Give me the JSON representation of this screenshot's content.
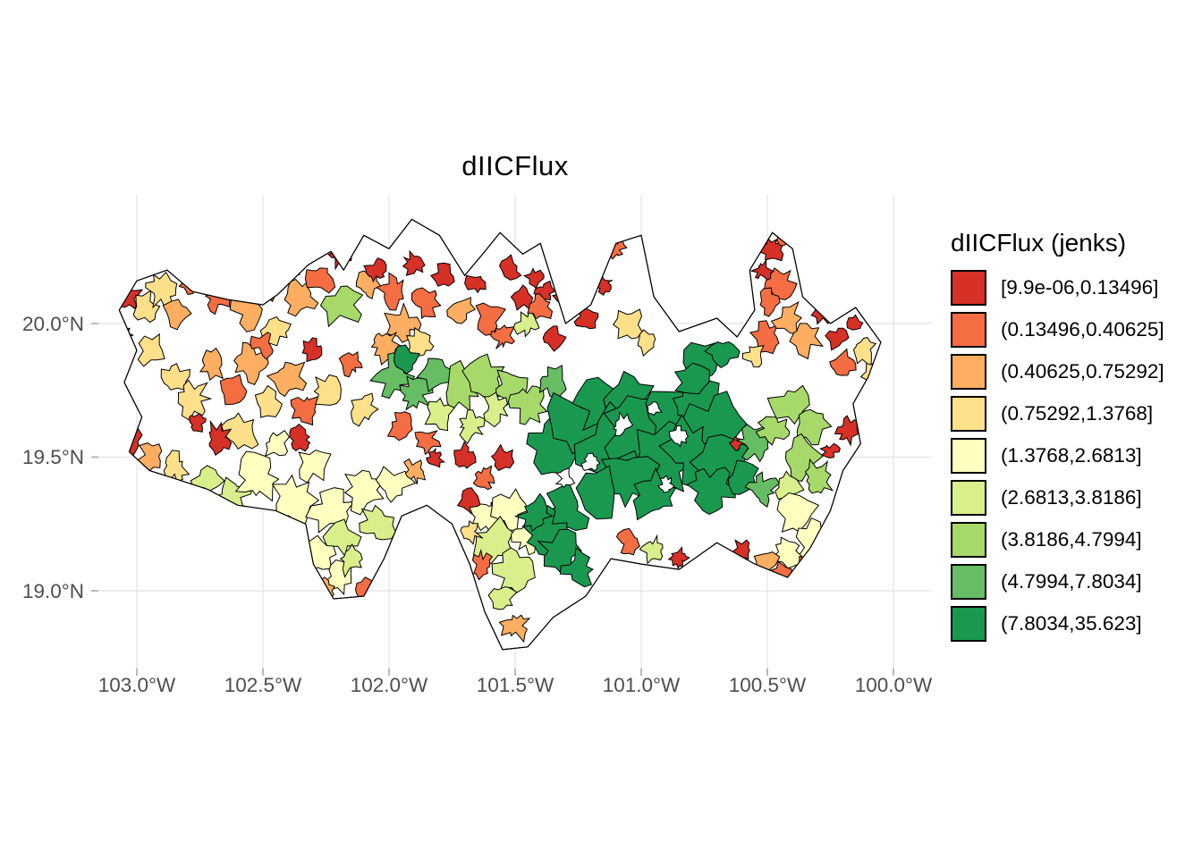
{
  "title": "dIICFlux",
  "legend": {
    "title": "dIICFlux (jenks)",
    "items": [
      {
        "label": "[9.9e-06,0.13496]",
        "color": "#d73027"
      },
      {
        "label": "(0.13496,0.40625]",
        "color": "#f46d43"
      },
      {
        "label": "(0.40625,0.75292]",
        "color": "#fdae61"
      },
      {
        "label": "(0.75292,1.3768]",
        "color": "#fee08b"
      },
      {
        "label": "(1.3768,2.6813]",
        "color": "#ffffbf"
      },
      {
        "label": "(2.6813,3.8186]",
        "color": "#d9ef8b"
      },
      {
        "label": "(3.8186,4.7994]",
        "color": "#a6d96a"
      },
      {
        "label": "(4.7994,7.8034]",
        "color": "#66bd63"
      },
      {
        "label": "(7.8034,35.623]",
        "color": "#1a9850"
      }
    ]
  },
  "axes": {
    "x_ticks": [
      {
        "label": "103.0°W",
        "lon": -103.0
      },
      {
        "label": "102.5°W",
        "lon": -102.5
      },
      {
        "label": "102.0°W",
        "lon": -102.0
      },
      {
        "label": "101.5°W",
        "lon": -101.5
      },
      {
        "label": "101.0°W",
        "lon": -101.0
      },
      {
        "label": "100.5°W",
        "lon": -100.5
      },
      {
        "label": "100.0°W",
        "lon": -100.0
      }
    ],
    "y_ticks": [
      {
        "label": "20.0°N",
        "lat": 20.0
      },
      {
        "label": "19.5°N",
        "lat": 19.5
      },
      {
        "label": "19.0°N",
        "lat": 19.0
      }
    ]
  },
  "chart_data": {
    "type": "choropleth-map",
    "title": "dIICFlux",
    "legend_title": "dIICFlux (jenks)",
    "classification": "jenks",
    "classes": [
      {
        "range": "[9.9e-06,0.13496]",
        "color": "#d73027"
      },
      {
        "range": "(0.13496,0.40625]",
        "color": "#f46d43"
      },
      {
        "range": "(0.40625,0.75292]",
        "color": "#fdae61"
      },
      {
        "range": "(0.75292,1.3768]",
        "color": "#fee08b"
      },
      {
        "range": "(1.3768,2.6813]",
        "color": "#ffffbf"
      },
      {
        "range": "(2.6813,3.8186]",
        "color": "#d9ef8b"
      },
      {
        "range": "(3.8186,4.7994]",
        "color": "#a6d96a"
      },
      {
        "range": "(4.7994,7.8034]",
        "color": "#66bd63"
      },
      {
        "range": "(7.8034,35.623]",
        "color": "#1a9850"
      }
    ],
    "lon_range": [
      -103.2,
      -99.85
    ],
    "lat_range": [
      18.75,
      20.49
    ],
    "grid": true,
    "legend_position": "right"
  },
  "map": {
    "gridline_color": "#e6e6e6",
    "tick_color": "#b9b9b9",
    "outline_color": "#000000",
    "background": "#ffffff",
    "class_colors": [
      "#ffffff",
      "#d73027",
      "#f46d43",
      "#fdae61",
      "#fee08b",
      "#ffffbf",
      "#d9ef8b",
      "#a6d96a",
      "#66bd63",
      "#1a9850"
    ],
    "outline": [
      [
        -103.07,
        20.05
      ],
      [
        -103.0,
        20.16
      ],
      [
        -102.88,
        20.2
      ],
      [
        -102.78,
        20.12
      ],
      [
        -102.64,
        20.09
      ],
      [
        -102.5,
        20.07
      ],
      [
        -102.44,
        20.11
      ],
      [
        -102.32,
        20.22
      ],
      [
        -102.23,
        20.27
      ],
      [
        -102.18,
        20.2
      ],
      [
        -102.1,
        20.33
      ],
      [
        -102.0,
        20.28
      ],
      [
        -101.91,
        20.39
      ],
      [
        -101.8,
        20.33
      ],
      [
        -101.7,
        20.18
      ],
      [
        -101.62,
        20.27
      ],
      [
        -101.56,
        20.34
      ],
      [
        -101.47,
        20.26
      ],
      [
        -101.4,
        20.3
      ],
      [
        -101.3,
        20.0
      ],
      [
        -101.2,
        20.07
      ],
      [
        -101.1,
        20.3
      ],
      [
        -101.0,
        20.33
      ],
      [
        -100.95,
        20.1
      ],
      [
        -100.85,
        19.97
      ],
      [
        -100.7,
        20.02
      ],
      [
        -100.62,
        19.95
      ],
      [
        -100.55,
        20.05
      ],
      [
        -100.57,
        20.2
      ],
      [
        -100.48,
        20.34
      ],
      [
        -100.4,
        20.28
      ],
      [
        -100.36,
        20.1
      ],
      [
        -100.25,
        20.0
      ],
      [
        -100.15,
        20.06
      ],
      [
        -100.05,
        19.93
      ],
      [
        -100.1,
        19.8
      ],
      [
        -100.16,
        19.7
      ],
      [
        -100.13,
        19.55
      ],
      [
        -100.2,
        19.45
      ],
      [
        -100.25,
        19.3
      ],
      [
        -100.33,
        19.16
      ],
      [
        -100.42,
        19.05
      ],
      [
        -100.55,
        19.1
      ],
      [
        -100.7,
        19.18
      ],
      [
        -100.85,
        19.08
      ],
      [
        -101.0,
        19.1
      ],
      [
        -101.12,
        19.12
      ],
      [
        -101.22,
        18.98
      ],
      [
        -101.35,
        18.9
      ],
      [
        -101.45,
        18.79
      ],
      [
        -101.55,
        18.78
      ],
      [
        -101.62,
        18.92
      ],
      [
        -101.68,
        19.1
      ],
      [
        -101.75,
        19.25
      ],
      [
        -101.85,
        19.32
      ],
      [
        -101.95,
        19.28
      ],
      [
        -102.02,
        19.12
      ],
      [
        -102.1,
        18.98
      ],
      [
        -102.22,
        18.97
      ],
      [
        -102.3,
        19.1
      ],
      [
        -102.33,
        19.25
      ],
      [
        -102.45,
        19.3
      ],
      [
        -102.6,
        19.32
      ],
      [
        -102.72,
        19.38
      ],
      [
        -102.85,
        19.42
      ],
      [
        -102.95,
        19.45
      ],
      [
        -103.03,
        19.52
      ],
      [
        -102.98,
        19.65
      ],
      [
        -103.05,
        19.78
      ],
      [
        -103.0,
        19.9
      ]
    ],
    "patches": [
      [
        -103.03,
        20.1,
        0.045,
        1
      ],
      [
        -103.05,
        19.96,
        0.03,
        1
      ],
      [
        -102.97,
        20.06,
        0.05,
        4
      ],
      [
        -102.9,
        20.13,
        0.06,
        4
      ],
      [
        -102.84,
        20.04,
        0.05,
        3
      ],
      [
        -102.79,
        20.16,
        0.04,
        2
      ],
      [
        -102.94,
        19.9,
        0.05,
        4
      ],
      [
        -103.02,
        19.56,
        0.04,
        1
      ],
      [
        -102.94,
        19.5,
        0.05,
        3
      ],
      [
        -102.85,
        19.46,
        0.05,
        4
      ],
      [
        -102.72,
        19.41,
        0.05,
        6
      ],
      [
        -102.62,
        19.36,
        0.06,
        6
      ],
      [
        -102.68,
        20.1,
        0.05,
        2
      ],
      [
        -102.6,
        20.17,
        0.05,
        1
      ],
      [
        -102.55,
        20.05,
        0.06,
        3
      ],
      [
        -102.47,
        20.15,
        0.05,
        2
      ],
      [
        -102.4,
        20.21,
        0.04,
        1
      ],
      [
        -102.35,
        20.1,
        0.06,
        3
      ],
      [
        -102.27,
        20.17,
        0.05,
        2
      ],
      [
        -102.2,
        20.26,
        0.04,
        1
      ],
      [
        -102.45,
        19.98,
        0.05,
        4
      ],
      [
        -102.18,
        20.07,
        0.07,
        7
      ],
      [
        -102.08,
        20.15,
        0.04,
        3
      ],
      [
        -102.85,
        19.8,
        0.05,
        4
      ],
      [
        -102.78,
        19.72,
        0.06,
        4
      ],
      [
        -102.7,
        19.85,
        0.05,
        3
      ],
      [
        -102.62,
        19.75,
        0.05,
        2
      ],
      [
        -102.55,
        19.85,
        0.06,
        3
      ],
      [
        -102.48,
        19.7,
        0.05,
        4
      ],
      [
        -102.4,
        19.8,
        0.06,
        3
      ],
      [
        -102.33,
        19.68,
        0.05,
        2
      ],
      [
        -102.58,
        19.6,
        0.06,
        4
      ],
      [
        -102.45,
        19.55,
        0.05,
        5
      ],
      [
        -102.68,
        19.57,
        0.05,
        1
      ],
      [
        -102.76,
        19.63,
        0.03,
        1
      ],
      [
        -102.35,
        19.57,
        0.04,
        1
      ],
      [
        -102.3,
        19.9,
        0.04,
        1
      ],
      [
        -102.5,
        19.92,
        0.04,
        2
      ],
      [
        -102.25,
        19.75,
        0.05,
        4
      ],
      [
        -102.15,
        19.85,
        0.04,
        2
      ],
      [
        -102.1,
        19.68,
        0.05,
        4
      ],
      [
        -102.52,
        19.42,
        0.08,
        5
      ],
      [
        -102.38,
        19.34,
        0.09,
        5
      ],
      [
        -102.22,
        19.3,
        0.08,
        5
      ],
      [
        -102.3,
        19.47,
        0.06,
        5
      ],
      [
        -102.1,
        19.38,
        0.07,
        5
      ],
      [
        -102.42,
        19.24,
        0.05,
        6
      ],
      [
        -102.18,
        19.2,
        0.06,
        6
      ],
      [
        -102.05,
        19.25,
        0.06,
        6
      ],
      [
        -101.98,
        19.4,
        0.06,
        5
      ],
      [
        -102.28,
        19.14,
        0.06,
        5
      ],
      [
        -102.2,
        19.05,
        0.06,
        5
      ],
      [
        -102.15,
        19.12,
        0.05,
        6
      ],
      [
        -102.26,
        19.0,
        0.04,
        3
      ],
      [
        -102.1,
        19.0,
        0.04,
        2
      ],
      [
        -102.05,
        20.2,
        0.04,
        1
      ],
      [
        -101.98,
        20.12,
        0.05,
        2
      ],
      [
        -101.9,
        20.22,
        0.04,
        1
      ],
      [
        -101.95,
        20.0,
        0.06,
        3
      ],
      [
        -101.85,
        20.08,
        0.05,
        2
      ],
      [
        -101.78,
        20.18,
        0.04,
        1
      ],
      [
        -101.72,
        20.05,
        0.05,
        3
      ],
      [
        -101.65,
        20.15,
        0.04,
        1
      ],
      [
        -101.6,
        20.02,
        0.05,
        2
      ],
      [
        -101.52,
        20.2,
        0.04,
        1
      ],
      [
        -101.47,
        20.1,
        0.04,
        1
      ],
      [
        -101.42,
        20.17,
        0.03,
        1
      ],
      [
        -101.38,
        20.12,
        0.03,
        1
      ],
      [
        -102.02,
        19.92,
        0.05,
        3
      ],
      [
        -101.88,
        19.92,
        0.05,
        4
      ],
      [
        -101.55,
        19.95,
        0.04,
        2
      ],
      [
        -101.45,
        20.0,
        0.04,
        6
      ],
      [
        -101.4,
        20.06,
        0.04,
        2
      ],
      [
        -101.35,
        19.95,
        0.04,
        1
      ],
      [
        -101.98,
        19.8,
        0.07,
        8
      ],
      [
        -101.9,
        19.74,
        0.06,
        8
      ],
      [
        -101.93,
        19.86,
        0.05,
        9
      ],
      [
        -101.82,
        19.82,
        0.06,
        8
      ],
      [
        -101.72,
        19.76,
        0.07,
        7
      ],
      [
        -101.62,
        19.8,
        0.07,
        7
      ],
      [
        -101.52,
        19.76,
        0.06,
        7
      ],
      [
        -101.45,
        19.7,
        0.06,
        7
      ],
      [
        -101.35,
        19.78,
        0.05,
        8
      ],
      [
        -101.8,
        19.66,
        0.05,
        6
      ],
      [
        -101.68,
        19.62,
        0.05,
        6
      ],
      [
        -101.95,
        19.62,
        0.05,
        2
      ],
      [
        -101.85,
        19.56,
        0.04,
        2
      ],
      [
        -101.58,
        19.68,
        0.05,
        6
      ],
      [
        -101.7,
        19.5,
        0.04,
        1
      ],
      [
        -101.62,
        19.42,
        0.04,
        2
      ],
      [
        -101.68,
        19.34,
        0.04,
        1
      ],
      [
        -101.55,
        19.5,
        0.04,
        1
      ],
      [
        -101.58,
        19.3,
        0.03,
        1
      ],
      [
        -101.9,
        19.45,
        0.04,
        3
      ],
      [
        -101.82,
        19.5,
        0.03,
        1
      ],
      [
        -101.62,
        19.28,
        0.06,
        5
      ],
      [
        -101.52,
        19.3,
        0.06,
        5
      ],
      [
        -101.58,
        19.18,
        0.07,
        6
      ],
      [
        -101.5,
        19.08,
        0.07,
        6
      ],
      [
        -101.55,
        18.97,
        0.05,
        6
      ],
      [
        -101.5,
        18.87,
        0.05,
        3
      ],
      [
        -101.63,
        19.1,
        0.04,
        2
      ],
      [
        -101.45,
        19.2,
        0.05,
        5
      ],
      [
        -101.68,
        19.22,
        0.04,
        4
      ],
      [
        -101.05,
        20.0,
        0.05,
        4
      ],
      [
        -100.98,
        19.93,
        0.04,
        4
      ],
      [
        -101.35,
        19.55,
        0.1,
        9
      ],
      [
        -101.25,
        19.62,
        0.11,
        9
      ],
      [
        -101.15,
        19.7,
        0.1,
        9
      ],
      [
        -101.05,
        19.72,
        0.1,
        9
      ],
      [
        -101.12,
        19.55,
        0.12,
        9
      ],
      [
        -101.0,
        19.6,
        0.12,
        9
      ],
      [
        -100.88,
        19.65,
        0.11,
        9
      ],
      [
        -100.78,
        19.7,
        0.09,
        9
      ],
      [
        -100.7,
        19.62,
        0.1,
        9
      ],
      [
        -100.92,
        19.48,
        0.12,
        9
      ],
      [
        -100.8,
        19.52,
        0.1,
        9
      ],
      [
        -100.68,
        19.48,
        0.09,
        9
      ],
      [
        -101.05,
        19.42,
        0.1,
        9
      ],
      [
        -101.18,
        19.38,
        0.09,
        9
      ],
      [
        -101.3,
        19.3,
        0.08,
        9
      ],
      [
        -101.38,
        19.22,
        0.07,
        9
      ],
      [
        -100.95,
        19.35,
        0.08,
        9
      ],
      [
        -100.72,
        19.38,
        0.07,
        9
      ],
      [
        -101.32,
        19.15,
        0.07,
        9
      ],
      [
        -101.25,
        19.08,
        0.06,
        9
      ],
      [
        -101.42,
        19.28,
        0.06,
        9
      ],
      [
        -100.75,
        19.85,
        0.07,
        9
      ],
      [
        -100.68,
        19.9,
        0.05,
        9
      ],
      [
        -100.8,
        19.78,
        0.06,
        9
      ],
      [
        -100.6,
        19.42,
        0.06,
        9
      ],
      [
        -101.08,
        19.62,
        0.035,
        0
      ],
      [
        -100.85,
        19.58,
        0.03,
        0
      ],
      [
        -101.2,
        19.48,
        0.03,
        0
      ],
      [
        -100.95,
        19.68,
        0.025,
        0
      ],
      [
        -101.3,
        19.42,
        0.03,
        0
      ],
      [
        -100.9,
        19.4,
        0.025,
        0
      ],
      [
        -100.62,
        19.55,
        0.025,
        1
      ],
      [
        -100.52,
        19.38,
        0.05,
        8
      ],
      [
        -100.55,
        19.55,
        0.06,
        8
      ],
      [
        -100.48,
        19.6,
        0.05,
        7
      ],
      [
        -100.4,
        19.7,
        0.07,
        7
      ],
      [
        -100.32,
        19.62,
        0.06,
        7
      ],
      [
        -100.38,
        19.5,
        0.07,
        7
      ],
      [
        -100.3,
        19.42,
        0.06,
        7
      ],
      [
        -100.42,
        19.38,
        0.05,
        6
      ],
      [
        -100.38,
        19.28,
        0.07,
        5
      ],
      [
        -100.32,
        19.18,
        0.07,
        5
      ],
      [
        -100.42,
        19.15,
        0.05,
        5
      ],
      [
        -100.35,
        19.08,
        0.04,
        2
      ],
      [
        -100.45,
        19.06,
        0.04,
        2
      ],
      [
        -100.5,
        19.1,
        0.04,
        3
      ],
      [
        -100.6,
        19.15,
        0.04,
        1
      ],
      [
        -100.5,
        19.95,
        0.05,
        2
      ],
      [
        -100.42,
        20.02,
        0.05,
        3
      ],
      [
        -100.35,
        19.95,
        0.06,
        3
      ],
      [
        -100.28,
        20.05,
        0.04,
        1
      ],
      [
        -100.22,
        19.95,
        0.04,
        1
      ],
      [
        -100.2,
        19.85,
        0.04,
        2
      ],
      [
        -100.15,
        20.0,
        0.03,
        1
      ],
      [
        -100.55,
        19.88,
        0.04,
        4
      ],
      [
        -100.12,
        19.9,
        0.05,
        4
      ],
      [
        -100.08,
        19.82,
        0.04,
        4
      ],
      [
        -100.18,
        19.6,
        0.04,
        1
      ],
      [
        -100.25,
        19.52,
        0.03,
        1
      ],
      [
        -100.48,
        20.28,
        0.04,
        1
      ],
      [
        -100.43,
        20.32,
        0.03,
        2
      ],
      [
        -100.45,
        20.15,
        0.05,
        2
      ],
      [
        -100.52,
        20.2,
        0.03,
        1
      ],
      [
        -100.5,
        20.08,
        0.04,
        2
      ],
      [
        -101.3,
        20.1,
        0.04,
        1
      ],
      [
        -101.22,
        20.02,
        0.04,
        1
      ],
      [
        -101.15,
        20.15,
        0.03,
        1
      ],
      [
        -101.1,
        20.28,
        0.03,
        2
      ],
      [
        -100.95,
        19.15,
        0.04,
        6
      ],
      [
        -101.05,
        19.18,
        0.04,
        2
      ],
      [
        -100.85,
        19.12,
        0.03,
        1
      ]
    ]
  }
}
